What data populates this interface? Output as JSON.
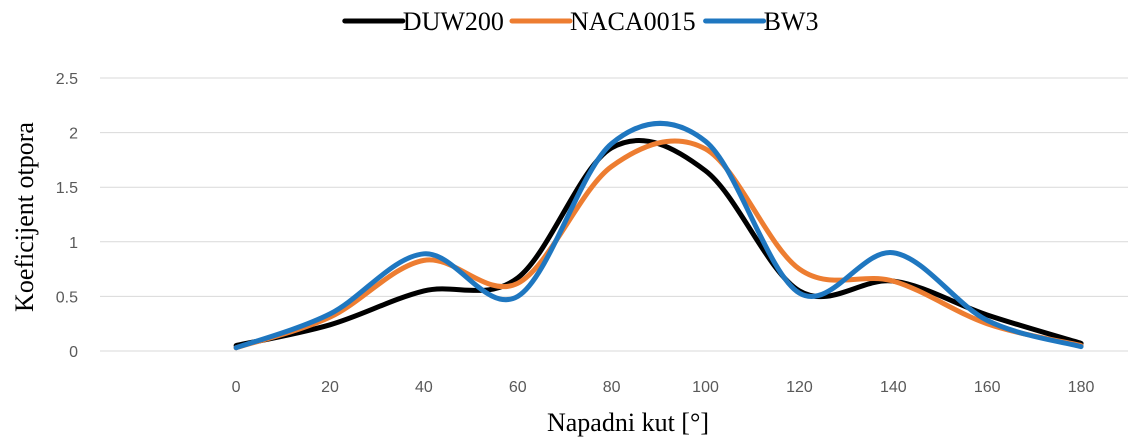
{
  "chart_data": {
    "type": "line",
    "title": "",
    "xlabel": "Napadni kut [°]",
    "ylabel": "Koeficijent otpora",
    "x": [
      0,
      20,
      40,
      60,
      80,
      100,
      120,
      140,
      160,
      180
    ],
    "x_tick_labels": [
      "0",
      "20",
      "40",
      "60",
      "80",
      "100",
      "120",
      "140",
      "160",
      "180"
    ],
    "y_tick_labels": [
      "0",
      "0.5",
      "1",
      "1.5",
      "2",
      "2.5"
    ],
    "xlim": [
      -29,
      190
    ],
    "ylim": [
      0,
      2.5
    ],
    "grid": "horizontal",
    "legend_position": "top",
    "smoothed": true,
    "series": [
      {
        "name": "DUW200",
        "color": "#000000",
        "values": [
          0.05,
          0.24,
          0.55,
          0.67,
          1.86,
          1.65,
          0.55,
          0.64,
          0.33,
          0.07
        ]
      },
      {
        "name": "NACA0015",
        "color": "#ed7d31",
        "values": [
          0.03,
          0.31,
          0.83,
          0.62,
          1.69,
          1.85,
          0.75,
          0.64,
          0.25,
          0.05
        ]
      },
      {
        "name": "BW3",
        "color": "#1f77c0",
        "values": [
          0.03,
          0.34,
          0.89,
          0.5,
          1.9,
          1.92,
          0.53,
          0.9,
          0.28,
          0.04
        ]
      }
    ]
  }
}
